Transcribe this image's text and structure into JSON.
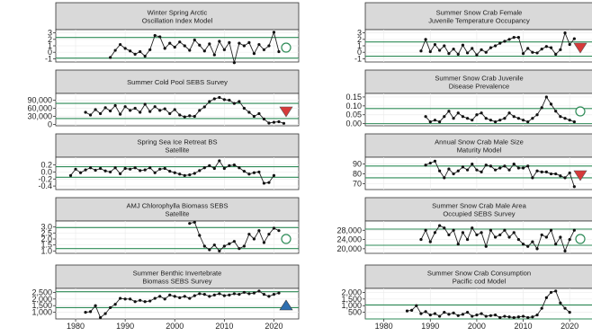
{
  "colors": {
    "strip_fill": "#d9d9d9",
    "upper_line": "#2e8b57",
    "lower_line": "#2e8b57",
    "points": "#111111",
    "grid": "#ececec",
    "trend_up": "#2f6fb0",
    "trend_down": "#d63a3a",
    "neutral": "#2e8b57"
  },
  "chart_data": [
    {
      "type": "line",
      "title_lines": [
        "Winter Spring Arctic",
        "Oscillation Index Model"
      ],
      "x": [
        1987,
        1988,
        1989,
        1990,
        1991,
        1992,
        1993,
        1994,
        1995,
        1996,
        1997,
        1998,
        1999,
        2000,
        2001,
        2002,
        2003,
        2004,
        2005,
        2006,
        2007,
        2008,
        2009,
        2010,
        2011,
        2012,
        2013,
        2014,
        2015,
        2016,
        2017,
        2018,
        2019,
        2020,
        2021
      ],
      "y": [
        -0.8,
        0.3,
        1.2,
        0.6,
        0.2,
        -0.3,
        0.1,
        -0.6,
        0.4,
        2.6,
        2.4,
        0.6,
        1.4,
        0.8,
        1.6,
        1.0,
        0.3,
        1.9,
        1.1,
        0.2,
        1.3,
        -0.4,
        1.7,
        0.4,
        1.5,
        -1.6,
        1.4,
        1.0,
        1.5,
        -0.2,
        1.2,
        0.4,
        1.0,
        3.1,
        0.1
      ],
      "yticks": [
        "3",
        "2",
        "1",
        "0",
        "-1"
      ],
      "ytick_vals": [
        3,
        2,
        1,
        0,
        -1
      ],
      "ylim": [
        -1.5,
        3.5
      ],
      "upper": 2.3,
      "lower": -0.9,
      "trend": "neutral"
    },
    {
      "type": "line",
      "title_lines": [
        "Summer Snow Crab Female",
        "Juvenile Temperature Occupancy"
      ],
      "x": [
        1988,
        1989,
        1990,
        1991,
        1992,
        1993,
        1994,
        1995,
        1996,
        1997,
        1998,
        1999,
        2000,
        2001,
        2002,
        2003,
        2004,
        2005,
        2006,
        2007,
        2008,
        2009,
        2010,
        2011,
        2012,
        2013,
        2014,
        2015,
        2016,
        2017,
        2018,
        2019,
        2020,
        2021
      ],
      "y": [
        0.2,
        2.0,
        0.1,
        1.2,
        0.3,
        1.0,
        -0.2,
        0.5,
        -0.3,
        1.1,
        -0.1,
        0.6,
        -0.4,
        0.4,
        0.0,
        0.7,
        1.0,
        1.4,
        1.7,
        2.0,
        2.3,
        2.3,
        -0.2,
        0.6,
        0.0,
        -0.1,
        0.5,
        0.9,
        0.7,
        -0.3,
        0.4,
        3.0,
        1.2,
        2.1
      ],
      "yticks": [
        "3",
        "2",
        "1",
        "0",
        "-1"
      ],
      "ytick_vals": [
        3,
        2,
        1,
        0,
        -1
      ],
      "ylim": [
        -1.5,
        3.5
      ],
      "upper": 1.6,
      "lower": -0.6,
      "trend": "down"
    },
    {
      "type": "line",
      "title_lines": [
        "Summer Cold Pool SEBS Survey"
      ],
      "x": [
        1982,
        1983,
        1984,
        1985,
        1986,
        1987,
        1988,
        1989,
        1990,
        1991,
        1992,
        1993,
        1994,
        1995,
        1996,
        1997,
        1998,
        1999,
        2000,
        2001,
        2002,
        2003,
        2004,
        2005,
        2006,
        2007,
        2008,
        2009,
        2010,
        2011,
        2012,
        2013,
        2014,
        2015,
        2016,
        2017,
        2018,
        2019,
        2020,
        2021,
        2022
      ],
      "y": [
        45000,
        35000,
        55000,
        40000,
        62000,
        50000,
        70000,
        38000,
        66000,
        52000,
        60000,
        45000,
        75000,
        48000,
        66000,
        52000,
        58000,
        40000,
        55000,
        35000,
        28000,
        32000,
        30000,
        52000,
        65000,
        85000,
        95000,
        100000,
        92000,
        90000,
        78000,
        85000,
        60000,
        45000,
        30000,
        40000,
        20000,
        5000,
        8000,
        10000,
        4000
      ],
      "yticks": [
        "90,000",
        "60,000",
        "30,000",
        "0"
      ],
      "ytick_vals": [
        90000,
        60000,
        30000,
        0
      ],
      "ylim": [
        -5000,
        115000
      ],
      "upper": 78000,
      "lower": 22000,
      "trend": "down"
    },
    {
      "type": "line",
      "title_lines": [
        "Summer Snow Crab Juvenile",
        "Disease Prevalence"
      ],
      "x": [
        1989,
        1990,
        1991,
        1992,
        1993,
        1994,
        1995,
        1996,
        1997,
        1998,
        1999,
        2000,
        2001,
        2002,
        2003,
        2004,
        2005,
        2006,
        2007,
        2008,
        2009,
        2010,
        2011,
        2012,
        2013,
        2014,
        2015,
        2016,
        2017,
        2018,
        2019,
        2020,
        2021
      ],
      "y": [
        0.04,
        0.01,
        0.02,
        0.01,
        0.04,
        0.07,
        0.03,
        0.06,
        0.04,
        0.03,
        0.02,
        0.05,
        0.06,
        0.03,
        0.02,
        0.01,
        0.02,
        0.03,
        0.06,
        0.04,
        0.03,
        0.02,
        0.01,
        0.03,
        0.05,
        0.09,
        0.15,
        0.11,
        0.07,
        0.04,
        0.03,
        0.02,
        0.01
      ],
      "yticks": [
        "0.15",
        "0.10",
        "0.05",
        "0.00"
      ],
      "ytick_vals": [
        0.15,
        0.1,
        0.05,
        0.0
      ],
      "ylim": [
        -0.012,
        0.17
      ],
      "upper": 0.085,
      "lower": 0.0,
      "trend": "neutral"
    },
    {
      "type": "line",
      "title_lines": [
        "Spring Sea Ice Retreat BS",
        "Satellite"
      ],
      "x": [
        1979,
        1980,
        1981,
        1982,
        1983,
        1984,
        1985,
        1986,
        1987,
        1988,
        1989,
        1990,
        1991,
        1992,
        1993,
        1994,
        1995,
        1996,
        1997,
        1998,
        1999,
        2000,
        2001,
        2002,
        2003,
        2004,
        2005,
        2006,
        2007,
        2008,
        2009,
        2010,
        2011,
        2012,
        2013,
        2014,
        2015,
        2016,
        2017,
        2018,
        2019,
        2020
      ],
      "y": [
        -0.1,
        0.08,
        -0.02,
        0.06,
        0.12,
        0.05,
        0.1,
        0.03,
        0.0,
        0.12,
        -0.05,
        0.1,
        0.08,
        0.12,
        0.04,
        0.06,
        0.12,
        -0.02,
        0.08,
        0.1,
        0.02,
        -0.02,
        -0.06,
        -0.1,
        -0.08,
        -0.04,
        0.04,
        0.12,
        0.18,
        0.1,
        0.32,
        0.1,
        0.18,
        0.2,
        0.12,
        0.02,
        -0.06,
        -0.02,
        0.0,
        -0.32,
        -0.3,
        -0.1
      ],
      "yticks": [
        "0.2",
        "0.0",
        "-0.2",
        "-0.4"
      ],
      "ytick_vals": [
        0.2,
        0.0,
        -0.2,
        -0.4
      ],
      "ylim": [
        -0.5,
        0.42
      ],
      "upper": 0.15,
      "lower": -0.15,
      "trend": "none"
    },
    {
      "type": "line",
      "title_lines": [
        "Annual Snow Crab Male Size",
        "Maturity Model"
      ],
      "x": [
        1989,
        1990,
        1991,
        1992,
        1993,
        1994,
        1995,
        1996,
        1997,
        1998,
        1999,
        2000,
        2001,
        2002,
        2003,
        2004,
        2005,
        2006,
        2007,
        2008,
        2009,
        2010,
        2011,
        2012,
        2013,
        2014,
        2015,
        2016,
        2017,
        2018,
        2019,
        2020,
        2021
      ],
      "y": [
        89,
        91,
        93,
        83,
        76,
        85,
        80,
        83,
        87,
        84,
        90,
        84,
        82,
        89,
        88,
        84,
        86,
        88,
        84,
        90,
        86,
        86,
        88,
        76,
        83,
        82,
        82,
        80,
        80,
        78,
        76,
        81,
        67
      ],
      "yticks": [
        "90",
        "80",
        "70"
      ],
      "ytick_vals": [
        90,
        80,
        70
      ],
      "ylim": [
        64,
        97
      ],
      "upper": 88,
      "lower": 76,
      "trend": "down"
    },
    {
      "type": "line",
      "title_lines": [
        "AMJ Chlorophylla Biomass SEBS",
        "Satellite"
      ],
      "x": [
        2003,
        2004,
        2005,
        2006,
        2007,
        2008,
        2009,
        2010,
        2011,
        2012,
        2013,
        2014,
        2015,
        2016,
        2017,
        2018,
        2019,
        2020,
        2021
      ],
      "y": [
        3.3,
        3.4,
        2.3,
        1.4,
        1.1,
        1.5,
        1.0,
        1.4,
        1.6,
        1.8,
        1.2,
        1.4,
        2.4,
        2.0,
        2.7,
        1.7,
        2.4,
        2.9,
        2.7
      ],
      "yticks": [
        "3.0",
        "2.5",
        "2.0",
        "1.5",
        "1.0"
      ],
      "ytick_vals": [
        3.0,
        2.5,
        2.0,
        1.5,
        1.0
      ],
      "ylim": [
        0.8,
        3.5
      ],
      "upper": 2.95,
      "lower": 1.2,
      "trend": "neutral"
    },
    {
      "type": "line",
      "title_lines": [
        "Summer Snow Crab Male Area",
        "Occupied SEBS Survey"
      ],
      "x": [
        1988,
        1989,
        1990,
        1991,
        1992,
        1993,
        1994,
        1995,
        1996,
        1997,
        1998,
        1999,
        2000,
        2001,
        2002,
        2003,
        2004,
        2005,
        2006,
        2007,
        2008,
        2009,
        2010,
        2011,
        2012,
        2013,
        2014,
        2015,
        2016,
        2017,
        2018,
        2019,
        2020,
        2021
      ],
      "y": [
        24000,
        28000,
        23000,
        27000,
        30000,
        29000,
        26000,
        28000,
        22000,
        27000,
        24000,
        29000,
        26000,
        27000,
        21000,
        28000,
        25000,
        26000,
        28000,
        25000,
        27000,
        24000,
        22000,
        21000,
        23000,
        20000,
        26000,
        25000,
        28000,
        22000,
        25000,
        19000,
        24000,
        28000
      ],
      "yticks": [
        "28,000",
        "24,000",
        "20,000"
      ],
      "ytick_vals": [
        28000,
        24000,
        20000
      ],
      "ylim": [
        18000,
        32000
      ],
      "upper": 28500,
      "lower": 21500,
      "trend": "neutral"
    },
    {
      "type": "line",
      "title_lines": [
        "Summer Benthic Invertebrate",
        "Biomass SEBS Survey"
      ],
      "x": [
        1982,
        1983,
        1984,
        1985,
        1986,
        1987,
        1988,
        1989,
        1990,
        1991,
        1992,
        1993,
        1994,
        1995,
        1996,
        1997,
        1998,
        1999,
        2000,
        2001,
        2002,
        2003,
        2004,
        2005,
        2006,
        2007,
        2008,
        2009,
        2010,
        2011,
        2012,
        2013,
        2014,
        2015,
        2016,
        2017,
        2018,
        2019,
        2020,
        2021
      ],
      "y": [
        1000,
        1050,
        1500,
        600,
        900,
        1350,
        1600,
        2050,
        2000,
        2000,
        1800,
        1900,
        1800,
        1850,
        2050,
        2200,
        2000,
        2300,
        2200,
        2100,
        2200,
        2050,
        2250,
        2400,
        2350,
        2200,
        2300,
        2400,
        2250,
        2300,
        2400,
        2350,
        2500,
        2400,
        2450,
        2600,
        2350,
        2200,
        2350,
        2450
      ],
      "yticks": [
        "2,500",
        "2,000",
        "1,500",
        "1,000"
      ],
      "ytick_vals": [
        2500,
        2000,
        1500,
        1000
      ],
      "ylim": [
        500,
        2800
      ],
      "upper": 2550,
      "lower": 1350,
      "trend": "up"
    },
    {
      "type": "line",
      "title_lines": [
        "Summer Snow Crab Consumption",
        "Pacific cod Model"
      ],
      "x": [
        1985,
        1986,
        1987,
        1988,
        1989,
        1990,
        1991,
        1992,
        1993,
        1994,
        1995,
        1996,
        1997,
        1998,
        1999,
        2000,
        2001,
        2002,
        2003,
        2004,
        2005,
        2006,
        2007,
        2008,
        2009,
        2010,
        2011,
        2012,
        2013,
        2014,
        2015,
        2016,
        2017,
        2018,
        2019,
        2020
      ],
      "y": [
        600,
        650,
        1000,
        400,
        550,
        300,
        400,
        200,
        500,
        350,
        450,
        250,
        350,
        500,
        200,
        300,
        400,
        200,
        250,
        300,
        100,
        200,
        150,
        100,
        150,
        200,
        100,
        150,
        300,
        800,
        1600,
        2000,
        2100,
        1200,
        800,
        500
      ],
      "yticks": [
        "2,000",
        "1,500",
        "1,000",
        "500"
      ],
      "ytick_vals": [
        2000,
        1500,
        1000,
        500
      ],
      "ylim": [
        0,
        2300
      ],
      "upper": 1050,
      "lower": 0,
      "trend": "none"
    }
  ],
  "x_axis": {
    "range": [
      1976,
      2025
    ],
    "ticks": [
      "1980",
      "1990",
      "2000",
      "2010",
      "2020"
    ],
    "tick_vals": [
      1980,
      1990,
      2000,
      2010,
      2020
    ]
  }
}
